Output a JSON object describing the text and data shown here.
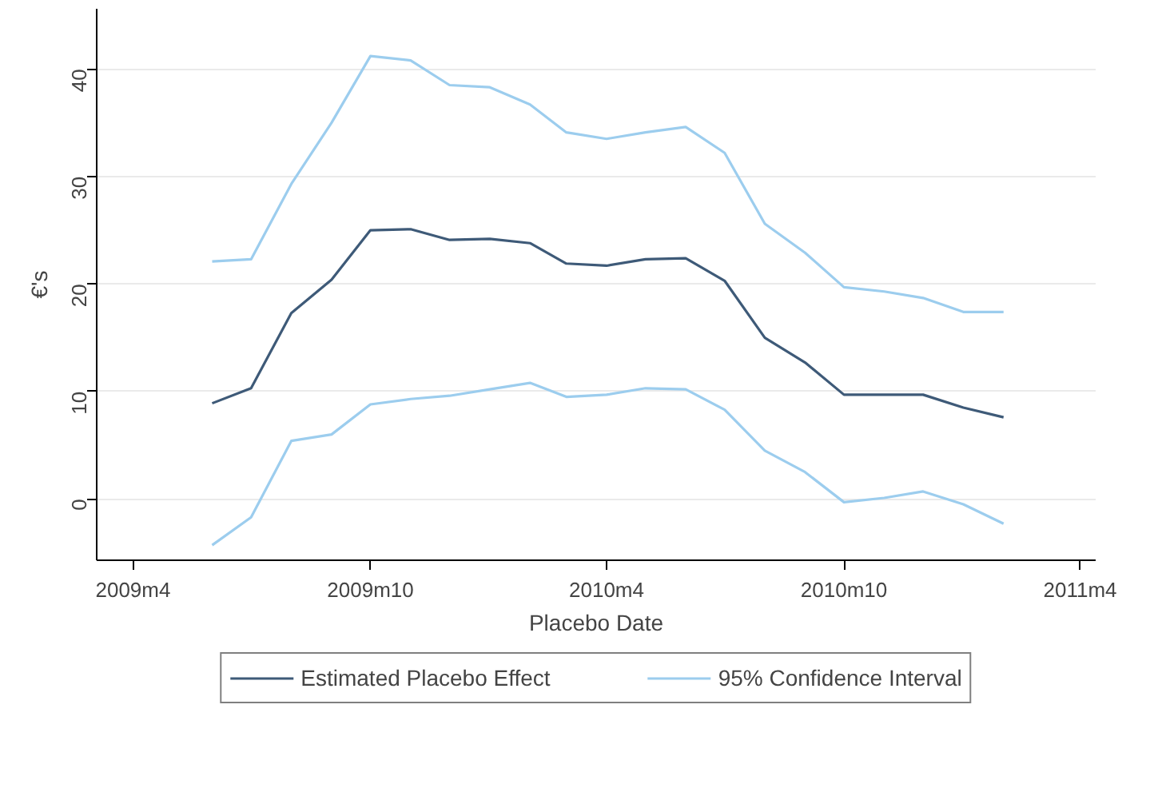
{
  "chart_data": {
    "type": "line",
    "xlabel": "Placebo Date",
    "ylabel": "€'s",
    "x": [
      "2009-06",
      "2009-07",
      "2009-08",
      "2009-09",
      "2009-10",
      "2009-11",
      "2009-12",
      "2010-01",
      "2010-02",
      "2010-03",
      "2010-04",
      "2010-05",
      "2010-06",
      "2010-07",
      "2010-08",
      "2010-09",
      "2010-10",
      "2010-11",
      "2010-12",
      "2011-01",
      "2011-02"
    ],
    "series": [
      {
        "name": "Estimated Placebo Effect",
        "color": "#3e5a78",
        "values": [
          8.9,
          10.3,
          17.3,
          20.4,
          25.0,
          25.1,
          24.1,
          24.2,
          23.8,
          21.9,
          21.7,
          22.3,
          22.4,
          20.3,
          15.0,
          12.7,
          9.7,
          9.7,
          9.7,
          8.5,
          7.6
        ]
      },
      {
        "name": "95% Confidence Interval",
        "color": "#9ccdee",
        "values": [
          22.1,
          22.3,
          29.3,
          35.0,
          41.2,
          40.8,
          38.5,
          38.3,
          36.7,
          34.1,
          33.5,
          34.1,
          34.6,
          32.2,
          25.6,
          22.9,
          19.7,
          19.3,
          18.7,
          17.4,
          17.4
        ]
      },
      {
        "color": "#9ccdee",
        "values": [
          -4.3,
          -1.7,
          5.4,
          6.0,
          8.8,
          9.3,
          9.6,
          10.2,
          10.8,
          9.5,
          9.7,
          10.3,
          10.2,
          8.3,
          4.5,
          2.5,
          -0.3,
          0.1,
          0.7,
          -0.5,
          -2.3
        ]
      }
    ],
    "xlim": [
      "2009-03-04",
      "2011-04-13"
    ],
    "xticks": [
      {
        "value": "2009-04",
        "label": "2009m4"
      },
      {
        "value": "2009-10",
        "label": "2009m10"
      },
      {
        "value": "2010-04",
        "label": "2010m4"
      },
      {
        "value": "2010-10",
        "label": "2010m10"
      },
      {
        "value": "2011-04",
        "label": "2011m4"
      }
    ],
    "ylim": [
      -5.7,
      45.6
    ],
    "yticks": [
      0,
      10,
      20,
      30,
      40
    ],
    "grid": "y",
    "legend": "bottom",
    "marker": "none",
    "line_style": "solid"
  }
}
